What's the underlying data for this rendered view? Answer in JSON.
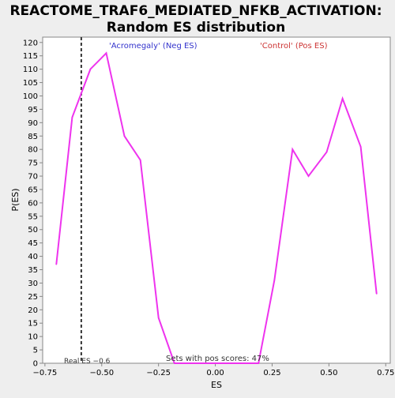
{
  "chart_data": {
    "type": "line",
    "title_line1": "REACTOME_TRAF6_MEDIATED_NFKB_ACTIVATION:",
    "title_line2": "Random ES distribution",
    "xlabel": "ES",
    "ylabel": "P(ES)",
    "xlim": [
      -0.76,
      0.77
    ],
    "ylim": [
      0,
      122
    ],
    "xticks": [
      -0.75,
      -0.5,
      -0.25,
      0.0,
      0.25,
      0.5,
      0.75
    ],
    "xtick_labels": [
      "−0.75",
      "−0.50",
      "−0.25",
      "0.00",
      "0.25",
      "0.50",
      "0.75"
    ],
    "yticks": [
      0,
      5,
      10,
      15,
      20,
      25,
      30,
      35,
      40,
      45,
      50,
      55,
      60,
      65,
      70,
      75,
      80,
      85,
      90,
      95,
      100,
      105,
      110,
      115,
      120
    ],
    "neg_label": "'Acromegaly' (Neg ES)",
    "pos_label": "'Control' (Pos ES)",
    "neg_label_color": "#3333cc",
    "pos_label_color": "#cc3333",
    "line_color": "#ee33ee",
    "real_es_value": -0.59,
    "real_es_label": "Real ES −0.6",
    "pos_scores_label": "Sets with pos scores: 47%",
    "series": [
      {
        "x": [
          -0.7,
          -0.63,
          -0.55,
          -0.48,
          -0.4,
          -0.33,
          -0.25,
          -0.18,
          0.19,
          0.26,
          0.34,
          0.41,
          0.49,
          0.56,
          0.64,
          0.71
        ],
        "y": [
          37,
          92,
          110,
          116,
          85,
          76,
          17,
          0,
          0,
          31,
          80,
          70,
          79,
          99,
          81,
          26
        ]
      }
    ]
  }
}
